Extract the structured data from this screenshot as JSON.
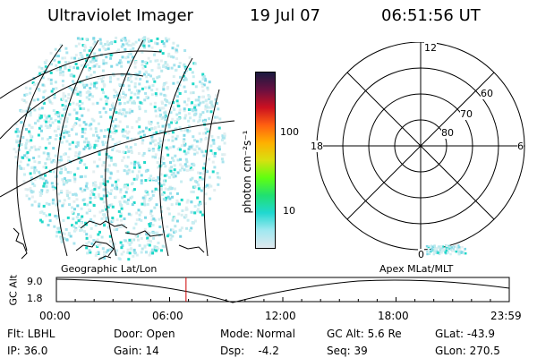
{
  "header": {
    "title": "Ultraviolet Imager",
    "date": "19 Jul 07",
    "time": "06:51:56 UT"
  },
  "colorbar": {
    "unit_label": "photon cm⁻²s⁻¹",
    "ticks": [
      "100",
      "10"
    ],
    "colors": [
      "#1a1a40",
      "#6a1040",
      "#cc1020",
      "#ff6010",
      "#ffb000",
      "#d8e010",
      "#60ff10",
      "#20e070",
      "#20d8d0",
      "#a0e8f0",
      "#e0e8ee"
    ]
  },
  "polar": {
    "mlt_labels": {
      "top": "12",
      "left": "18",
      "right": "6",
      "bottom": "0"
    },
    "lat_labels": [
      "60",
      "70",
      "80"
    ]
  },
  "timeline": {
    "left_label": "Geographic Lat/Lon",
    "right_label": "Apex  MLat/MLT",
    "axis_label": "GC Alt",
    "y_ticks": [
      "9.0",
      "1.8"
    ],
    "x_ticks": [
      "00:00",
      "06:00",
      "12:00",
      "18:00",
      "23:59"
    ],
    "current_time_hours": 6.87,
    "marker_color": "#cc0000"
  },
  "info": {
    "row1": [
      "Flt: LBHL",
      "Door: Open",
      "Mode: Normal",
      "GC Alt: 5.6 Re",
      "GLat: -43.9"
    ],
    "row2": [
      "IP: 36.0",
      "Gain: 14",
      "Dsp:    -4.2",
      "Seq: 39",
      "GLon: 270.5"
    ]
  }
}
